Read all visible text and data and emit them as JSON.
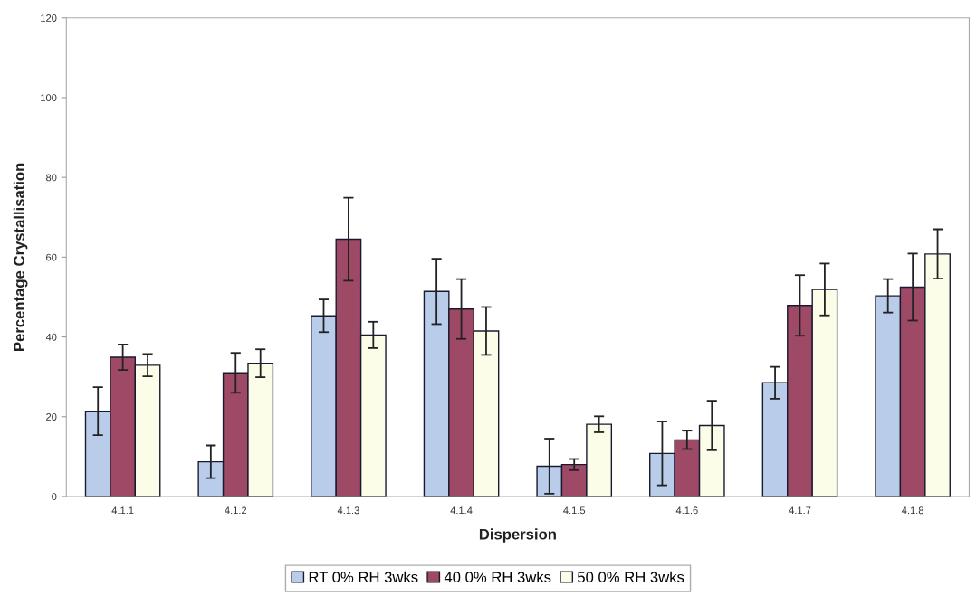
{
  "chart_data": {
    "type": "bar",
    "xlabel": "Dispersion",
    "ylabel": "Percentage Crystallisation",
    "categories": [
      "4.1.1",
      "4.1.2",
      "4.1.3",
      "4.1.4",
      "4.1.5",
      "4.1.6",
      "4.1.7",
      "4.1.8"
    ],
    "series": [
      {
        "name": "RT 0% RH 3wks",
        "color": "#b9cdeb",
        "values": [
          21.4,
          8.7,
          45.3,
          51.4,
          7.6,
          10.8,
          28.5,
          50.3
        ],
        "errors": [
          6,
          4.1,
          4.1,
          8.2,
          6.9,
          8,
          4,
          4.2
        ]
      },
      {
        "name": "40 0% RH 3wks",
        "color": "#9e4a67",
        "values": [
          34.9,
          31.0,
          64.5,
          47.0,
          8.0,
          14.2,
          47.9,
          52.5
        ],
        "errors": [
          3.2,
          5,
          10.4,
          7.5,
          1.4,
          2.3,
          7.6,
          8.4
        ]
      },
      {
        "name": "50 0% RH 3wks",
        "color": "#fcfde8",
        "values": [
          32.9,
          33.4,
          40.5,
          41.5,
          18.1,
          17.8,
          51.9,
          60.8
        ],
        "errors": [
          2.8,
          3.5,
          3.3,
          6,
          2,
          6.2,
          6.5,
          6.2
        ]
      }
    ],
    "ylim": [
      0,
      120
    ],
    "yticks": [
      0,
      20,
      40,
      60,
      80,
      100,
      120
    ],
    "grid": false,
    "legend": "bottom"
  }
}
